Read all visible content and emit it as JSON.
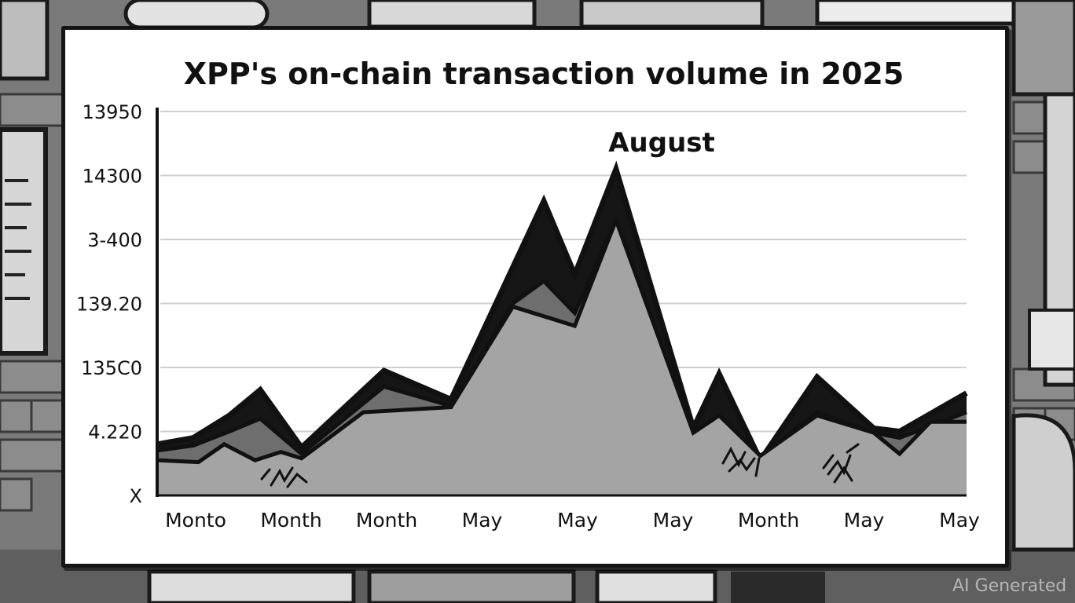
{
  "watermark": "AI Generated",
  "chart_data": {
    "type": "area",
    "title": "XPP's on-chain transaction volume in 2025",
    "annotation": "August",
    "xlabel": "",
    "ylabel": "",
    "y_tick_labels": [
      "X",
      "4.220",
      "135C0",
      "139.20",
      "3-400",
      "14300",
      "13950"
    ],
    "x_tick_labels": [
      "Monto",
      "Month",
      "Month",
      "May",
      "May",
      "May",
      "Month",
      "May",
      "May"
    ],
    "ylim": [
      0,
      6
    ],
    "grid": true,
    "colors": {
      "front_area": "#a4a4a4",
      "mid_area": "#6e6e6e",
      "back_area": "#161616",
      "line": "#111111"
    },
    "series": [
      {
        "role": "back",
        "values": [
          [
            0,
            0.8
          ],
          [
            0.35,
            0.9
          ],
          [
            0.7,
            1.25
          ],
          [
            1.0,
            1.65
          ],
          [
            1.4,
            0.75
          ],
          [
            2.2,
            1.95
          ],
          [
            2.85,
            1.5
          ],
          [
            3.75,
            4.6
          ],
          [
            4.05,
            3.45
          ],
          [
            4.45,
            5.1
          ],
          [
            5.2,
            1.05
          ],
          [
            5.45,
            1.9
          ],
          [
            5.85,
            0.55
          ],
          [
            6.4,
            1.85
          ],
          [
            6.95,
            1.05
          ],
          [
            7.2,
            1.0
          ],
          [
            7.85,
            1.6
          ]
        ]
      },
      {
        "role": "mid",
        "values": [
          [
            0,
            0.7
          ],
          [
            0.35,
            0.78
          ],
          [
            0.7,
            1.0
          ],
          [
            1.0,
            1.2
          ],
          [
            1.4,
            0.65
          ],
          [
            2.2,
            1.7
          ],
          [
            2.85,
            1.4
          ],
          [
            3.45,
            3.0
          ],
          [
            3.75,
            3.35
          ],
          [
            4.05,
            2.85
          ],
          [
            4.45,
            4.3
          ],
          [
            5.2,
            0.98
          ],
          [
            5.45,
            1.2
          ],
          [
            5.85,
            0.6
          ],
          [
            6.4,
            1.3
          ],
          [
            6.95,
            0.98
          ],
          [
            7.2,
            0.9
          ],
          [
            7.85,
            1.3
          ]
        ]
      },
      {
        "role": "front",
        "values": [
          [
            0,
            0.55
          ],
          [
            0.4,
            0.52
          ],
          [
            0.65,
            0.8
          ],
          [
            0.95,
            0.55
          ],
          [
            1.2,
            0.68
          ],
          [
            1.4,
            0.58
          ],
          [
            2.0,
            1.3
          ],
          [
            2.85,
            1.38
          ],
          [
            3.45,
            2.95
          ],
          [
            4.05,
            2.65
          ],
          [
            4.45,
            4.3
          ],
          [
            5.2,
            0.98
          ],
          [
            5.45,
            1.25
          ],
          [
            5.85,
            0.62
          ],
          [
            6.4,
            1.25
          ],
          [
            6.95,
            0.98
          ],
          [
            7.2,
            0.65
          ],
          [
            7.5,
            1.15
          ],
          [
            7.85,
            1.15
          ]
        ]
      }
    ]
  }
}
